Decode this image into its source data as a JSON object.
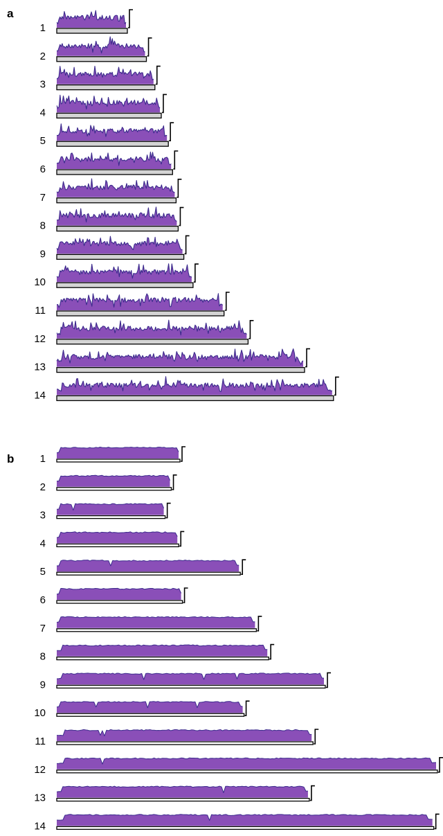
{
  "colors": {
    "area_fill": "#8a4fb8",
    "line": "#3b2a8c",
    "bar_a_fill": "#d4d4d4",
    "bar_b_fill": "#ffffff",
    "outline": "#000000"
  },
  "panels": [
    {
      "letter": "a",
      "rows": [
        {
          "label": "1",
          "length": 1.0
        },
        {
          "label": "2",
          "length": 1.27
        },
        {
          "label": "3",
          "length": 1.39
        },
        {
          "label": "4",
          "length": 1.48
        },
        {
          "label": "5",
          "length": 1.58
        },
        {
          "label": "6",
          "length": 1.64
        },
        {
          "label": "7",
          "length": 1.69
        },
        {
          "label": "8",
          "length": 1.72
        },
        {
          "label": "9",
          "length": 1.8
        },
        {
          "label": "10",
          "length": 1.93
        },
        {
          "label": "11",
          "length": 2.37
        },
        {
          "label": "12",
          "length": 2.71
        },
        {
          "label": "13",
          "length": 3.51
        },
        {
          "label": "14",
          "length": 3.92
        }
      ]
    },
    {
      "letter": "b",
      "rows": [
        {
          "label": "1",
          "length": 1.0
        },
        {
          "label": "2",
          "length": 0.93
        },
        {
          "label": "3",
          "length": 0.88
        },
        {
          "label": "4",
          "length": 0.99
        },
        {
          "label": "5",
          "length": 1.49
        },
        {
          "label": "6",
          "length": 1.02
        },
        {
          "label": "7",
          "length": 1.62
        },
        {
          "label": "8",
          "length": 1.72
        },
        {
          "label": "9",
          "length": 2.18
        },
        {
          "label": "10",
          "length": 1.52
        },
        {
          "label": "11",
          "length": 2.08
        },
        {
          "label": "12",
          "length": 3.09
        },
        {
          "label": "13",
          "length": 2.05
        },
        {
          "label": "14",
          "length": 3.06
        }
      ]
    }
  ]
}
